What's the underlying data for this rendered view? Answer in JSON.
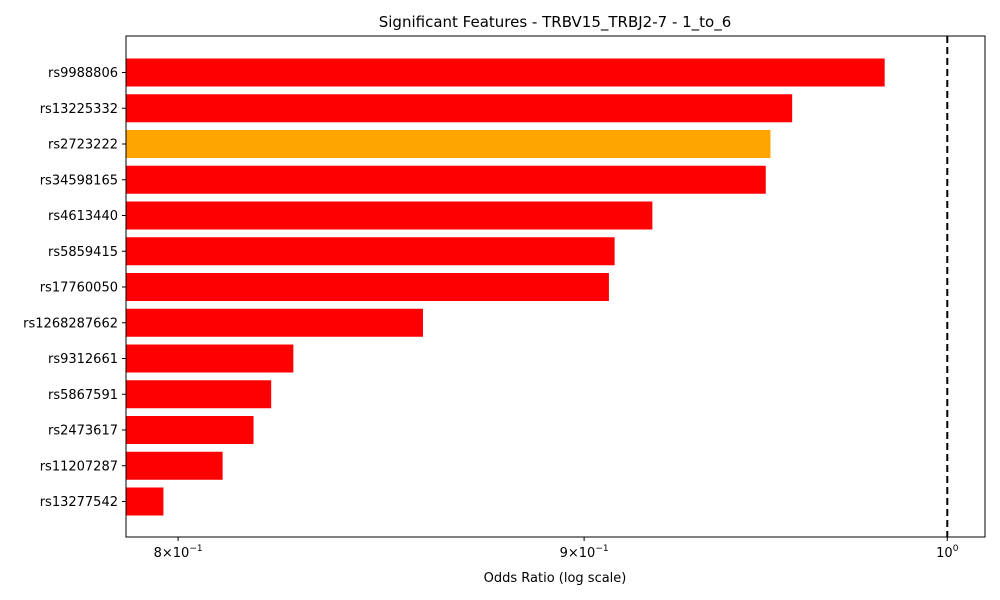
{
  "chart_data": {
    "type": "bar",
    "orientation": "horizontal",
    "title": "Significant Features - TRBV15_TRBJ2-7 - 1_to_6",
    "xlabel": "Odds Ratio (log scale)",
    "ylabel": "",
    "xscale": "log",
    "xlim": [
      0.788,
      1.011
    ],
    "grid": false,
    "legend": "none",
    "reference_line": {
      "x": 1.0,
      "style": "dashed",
      "color": "#000000"
    },
    "bar_base": 0.788,
    "categories": [
      "rs9988806",
      "rs13225332",
      "rs2723222",
      "rs34598165",
      "rs4613440",
      "rs5859415",
      "rs17760050",
      "rs1268287662",
      "rs9312661",
      "rs5867591",
      "rs2473617",
      "rs11207287",
      "rs13277542"
    ],
    "values": [
      0.982,
      0.956,
      0.95,
      0.9487,
      0.918,
      0.908,
      0.9065,
      0.8589,
      0.8272,
      0.8219,
      0.8177,
      0.8104,
      0.7966
    ],
    "colors": [
      "#ff0000",
      "#ff0000",
      "#ffa500",
      "#ff0000",
      "#ff0000",
      "#ff0000",
      "#ff0000",
      "#ff0000",
      "#ff0000",
      "#ff0000",
      "#ff0000",
      "#ff0000",
      "#ff0000"
    ],
    "xticks": [
      {
        "value": 0.8,
        "mantissa": "8",
        "base": "×10",
        "exponent": "−1"
      },
      {
        "value": 0.9,
        "mantissa": "9",
        "base": "×10",
        "exponent": "−1"
      },
      {
        "value": 1.0,
        "mantissa": "",
        "base": "10",
        "exponent": "0"
      }
    ]
  }
}
